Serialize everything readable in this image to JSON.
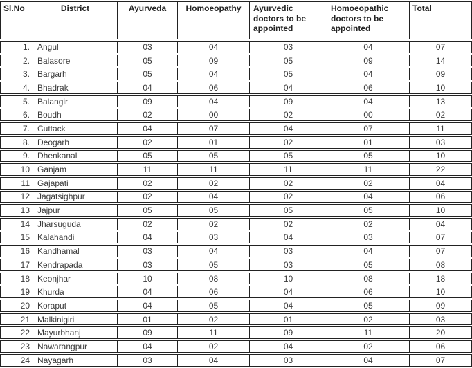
{
  "table": {
    "columns": [
      {
        "key": "slno",
        "label": "Sl.No"
      },
      {
        "key": "district",
        "label": "District"
      },
      {
        "key": "ayurveda",
        "label": "Ayurveda"
      },
      {
        "key": "homoeopathy",
        "label": "Homoeopathy"
      },
      {
        "key": "ayurvedic-doctors",
        "label": "Ayurvedic doctors to be appointed"
      },
      {
        "key": "homoeopathic-doctors",
        "label": "Homoeopathic doctors to be appointed"
      },
      {
        "key": "total",
        "label": "Total"
      }
    ],
    "rows": [
      [
        "1.",
        "Angul",
        "03",
        "04",
        "03",
        "04",
        "07"
      ],
      [
        "2.",
        "Balasore",
        "05",
        "09",
        "05",
        "09",
        "14"
      ],
      [
        "3.",
        "Bargarh",
        "05",
        "04",
        "05",
        "04",
        "09"
      ],
      [
        "4.",
        "Bhadrak",
        "04",
        "06",
        "04",
        "06",
        "10"
      ],
      [
        "5.",
        "Balangir",
        "09",
        "04",
        "09",
        "04",
        "13"
      ],
      [
        "6.",
        "Boudh",
        "02",
        "00",
        "02",
        "00",
        "02"
      ],
      [
        "7.",
        "Cuttack",
        "04",
        "07",
        "04",
        "07",
        "11"
      ],
      [
        "8.",
        "Deogarh",
        "02",
        "01",
        "02",
        "01",
        "03"
      ],
      [
        "9.",
        "Dhenkanal",
        "05",
        "05",
        "05",
        "05",
        "10"
      ],
      [
        "10",
        "Ganjam",
        "11",
        "11",
        "11",
        "11",
        "22"
      ],
      [
        "11",
        "Gajapati",
        "02",
        "02",
        "02",
        "02",
        "04"
      ],
      [
        "12",
        "Jagatsighpur",
        "02",
        "04",
        "02",
        "04",
        "06"
      ],
      [
        "13",
        "Jajpur",
        "05",
        "05",
        "05",
        "05",
        "10"
      ],
      [
        "14",
        "Jharsuguda",
        "02",
        "02",
        "02",
        "02",
        "04"
      ],
      [
        "15",
        "Kalahandi",
        "04",
        "03",
        "04",
        "03",
        "07"
      ],
      [
        "16",
        "Kandhamal",
        "03",
        "04",
        "03",
        "04",
        "07"
      ],
      [
        "17",
        "Kendrapada",
        "03",
        "05",
        "03",
        "05",
        "08"
      ],
      [
        "18",
        "Keonjhar",
        "10",
        "08",
        "10",
        "08",
        "18"
      ],
      [
        "19",
        "Khurda",
        "04",
        "06",
        "04",
        "06",
        "10"
      ],
      [
        "20",
        "Koraput",
        "04",
        "05",
        "04",
        "05",
        "09"
      ],
      [
        "21",
        "Malkinigiri",
        "01",
        "02",
        "01",
        "02",
        "03"
      ],
      [
        "22",
        "Mayurbhanj",
        "09",
        "11",
        "09",
        "11",
        "20"
      ],
      [
        "23",
        "Nawarangpur",
        "04",
        "02",
        "04",
        "02",
        "06"
      ],
      [
        "24",
        "Nayagarh",
        "03",
        "04",
        "03",
        "04",
        "07"
      ]
    ]
  }
}
